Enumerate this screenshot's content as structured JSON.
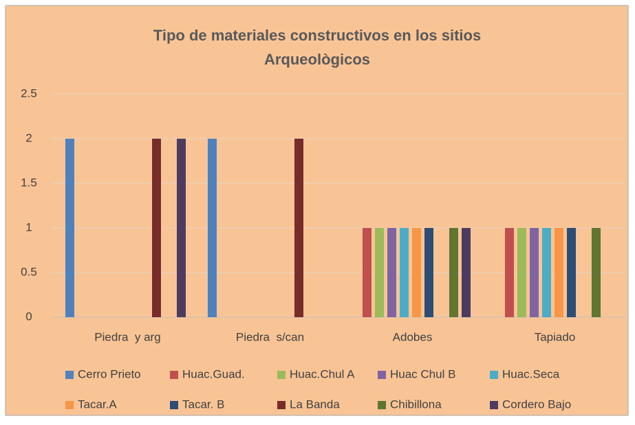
{
  "chart_data": {
    "type": "bar",
    "title": "Tipo de materiales constructivos en los sitios Arqueològicos",
    "categories": [
      "Piedra  y arg",
      "Piedra  s/can",
      "Adobes",
      "Tapiado"
    ],
    "series": [
      {
        "name": "Cerro Prieto",
        "color": "#4f81bd",
        "values": [
          2,
          2,
          0,
          0
        ]
      },
      {
        "name": "Huac.Guad.",
        "color": "#c0504d",
        "values": [
          0,
          0,
          1,
          1
        ]
      },
      {
        "name": "Huac.Chul A",
        "color": "#9bbb59",
        "values": [
          0,
          0,
          1,
          1
        ]
      },
      {
        "name": "Huac Chul B",
        "color": "#8064a2",
        "values": [
          0,
          0,
          1,
          1
        ]
      },
      {
        "name": "Huac.Seca",
        "color": "#4bacc6",
        "values": [
          0,
          0,
          1,
          1
        ]
      },
      {
        "name": "Tacar.A",
        "color": "#f79646",
        "values": [
          0,
          0,
          1,
          1
        ]
      },
      {
        "name": "Tacar. B",
        "color": "#2c4d75",
        "values": [
          0,
          0,
          1,
          1
        ]
      },
      {
        "name": "La Banda",
        "color": "#772c2a",
        "values": [
          2,
          2,
          0,
          0
        ]
      },
      {
        "name": "Chibillona",
        "color": "#5f7530",
        "values": [
          0,
          0,
          1,
          1
        ]
      },
      {
        "name": "Cordero Bajo",
        "color": "#4d3b62",
        "values": [
          2,
          0,
          1,
          0
        ]
      }
    ],
    "ylim": [
      0,
      2.5
    ],
    "yticks": [
      0,
      0.5,
      1,
      1.5,
      2,
      2.5
    ],
    "grid": true,
    "legend": "bottom",
    "background": "#f9c495"
  }
}
